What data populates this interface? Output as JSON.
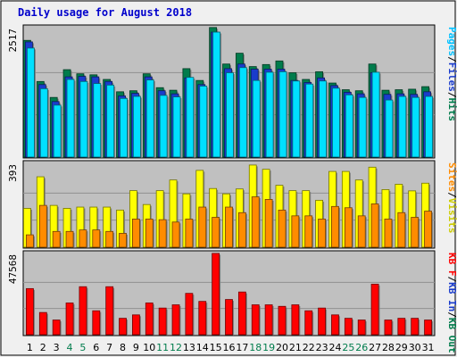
{
  "chart_data": {
    "type": "bar",
    "title": "Daily usage for August 2018",
    "categories": [
      "1",
      "2",
      "3",
      "4",
      "5",
      "6",
      "7",
      "8",
      "9",
      "10",
      "11",
      "12",
      "13",
      "14",
      "15",
      "16",
      "17",
      "18",
      "19",
      "20",
      "21",
      "22",
      "23",
      "24",
      "25",
      "26",
      "27",
      "28",
      "29",
      "30",
      "31"
    ],
    "weekend_days": [
      "4",
      "5",
      "11",
      "12",
      "18",
      "19",
      "25",
      "26"
    ],
    "grid": true,
    "colors": {
      "background": "#c0c0c0",
      "hits": "#007c4c",
      "files": "#1a3ccc",
      "pages": "#00e0ff",
      "visits": "#ffff00",
      "sites": "#ff8c00",
      "kbytes": "#ff0000",
      "title": "#0000cc",
      "weekday_tick": "#000000",
      "weekend_tick": "#007c4c"
    },
    "panels": [
      {
        "id": "hits-files-pages",
        "ymax_label": "2517",
        "ylim": [
          0,
          2517
        ],
        "legend": [
          {
            "text": "Pages",
            "color": "#00c0ff"
          },
          {
            "text": "/",
            "color": "#000000"
          },
          {
            "text": "Files",
            "color": "#1a3ccc"
          },
          {
            "text": "/",
            "color": "#000000"
          },
          {
            "text": "Hits",
            "color": "#007c4c"
          }
        ],
        "series": [
          {
            "name": "Hits",
            "color": "#007c4c",
            "values": [
              2270,
              1470,
              1160,
              1700,
              1620,
              1600,
              1510,
              1270,
              1290,
              1620,
              1350,
              1300,
              1720,
              1490,
              2520,
              1810,
              2020,
              1760,
              1800,
              1870,
              1640,
              1510,
              1660,
              1440,
              1310,
              1290,
              1810,
              1300,
              1310,
              1320,
              1370
            ]
          },
          {
            "name": "Files",
            "color": "#1a3ccc",
            "values": [
              2240,
              1410,
              1080,
              1560,
              1570,
              1560,
              1470,
              1190,
              1240,
              1560,
              1290,
              1230,
              1540,
              1410,
              2430,
              1720,
              1810,
              1710,
              1710,
              1710,
              1490,
              1450,
              1540,
              1390,
              1260,
              1230,
              1640,
              1220,
              1230,
              1220,
              1270
            ]
          },
          {
            "name": "Pages",
            "color": "#00e0ff",
            "values": [
              2120,
              1330,
              1010,
              1510,
              1470,
              1430,
              1400,
              1140,
              1180,
              1500,
              1200,
              1170,
              1550,
              1380,
              2430,
              1640,
              1740,
              1490,
              1650,
              1660,
              1480,
              1420,
              1480,
              1340,
              1210,
              1160,
              1650,
              1110,
              1180,
              1160,
              1180
            ]
          }
        ]
      },
      {
        "id": "visits-sites",
        "ymax_label": "393",
        "ylim": [
          0,
          393
        ],
        "legend": [
          {
            "text": "Sites",
            "color": "#ff8c00"
          },
          {
            "text": "/",
            "color": "#000000"
          },
          {
            "text": "Visits",
            "color": "#cccc00"
          }
        ],
        "series": [
          {
            "name": "Visits",
            "color": "#ffff00",
            "values": [
              182,
              330,
              196,
              182,
              188,
              188,
              188,
              174,
              265,
              200,
              265,
              315,
              250,
              360,
              275,
              250,
              273,
              385,
              365,
              290,
              265,
              265,
              220,
              355,
              355,
              315,
              375,
              270,
              295,
              264,
              300
            ]
          },
          {
            "name": "Sites",
            "color": "#ff8c00",
            "values": [
              58,
              196,
              74,
              74,
              81,
              81,
              74,
              65,
              132,
              132,
              129,
              118,
              132,
              188,
              140,
              188,
              162,
              236,
              224,
              174,
              147,
              147,
              132,
              191,
              185,
              147,
              203,
              132,
              162,
              140,
              169
            ]
          }
        ]
      },
      {
        "id": "kbytes",
        "ymax_label": "47568",
        "ylim": [
          0,
          47568
        ],
        "legend": [
          {
            "text": "KB F",
            "color": "#ff0000"
          },
          {
            "text": "/",
            "color": "#000000"
          },
          {
            "text": "KB In",
            "color": "#1a3ccc"
          },
          {
            "text": "/",
            "color": "#000000"
          },
          {
            "text": "KB Out",
            "color": "#007c4c"
          }
        ],
        "series": [
          {
            "name": "KB F",
            "color": "#ff0000",
            "values": [
              27000,
              13000,
              8600,
              18600,
              28100,
              14000,
              28100,
              9600,
              11600,
              18600,
              15600,
              17500,
              24200,
              19500,
              47600,
              20600,
              25000,
              17500,
              17500,
              16600,
              17500,
              14000,
              15600,
              11600,
              9600,
              8600,
              29600,
              8600,
              9600,
              9600,
              8600
            ]
          }
        ]
      }
    ]
  }
}
